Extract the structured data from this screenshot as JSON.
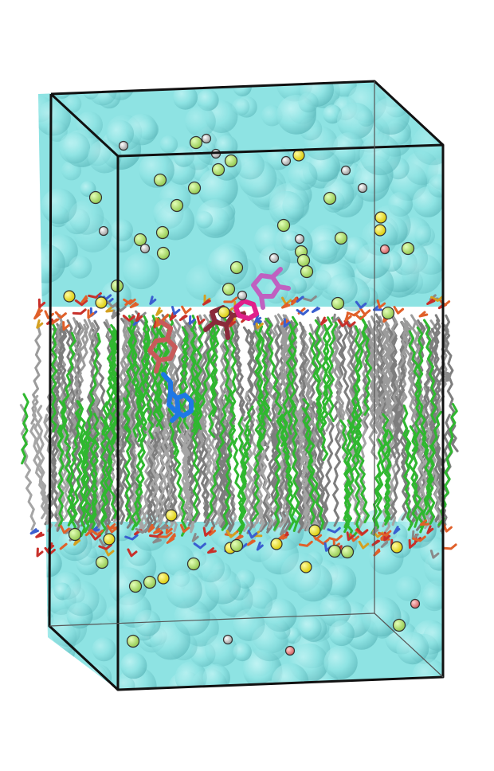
{
  "scene": {
    "subject": "",
    "colors": {
      "solvent": "#8ee3e3",
      "solvent_edge": "#5fb8bb",
      "box_edge": "#111111",
      "lipid_tail_grey": "#8a8a8a",
      "lipid_tail_green": "#2fb82f",
      "phosphate": "#e0602a",
      "headgroup_red": "#c8302a",
      "nitrogen": "#3a5fd0",
      "ion_yellow": "#f2e600",
      "ion_lightgreen": "#b6e86a",
      "ion_grey": "#c8c8c8",
      "ion_salmon": "#f08080",
      "ligand_blue": "#1e78e6",
      "ligand_purple": "#c060c0",
      "ligand_maroon": "#8a2a3a",
      "ligand_magenta": "#e0208a",
      "ligand_rose": "#c85a5a"
    }
  }
}
